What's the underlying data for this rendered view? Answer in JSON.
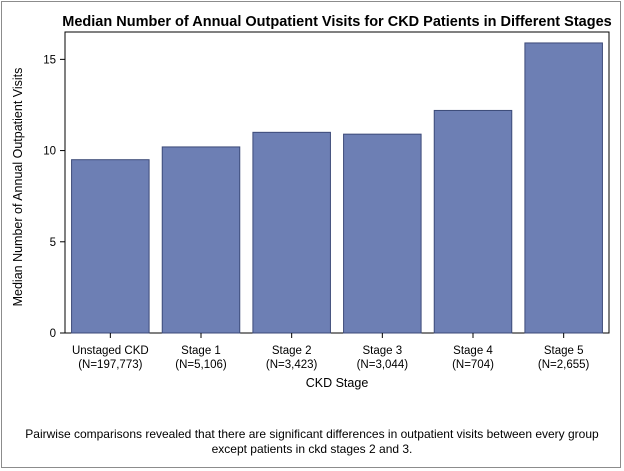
{
  "chart_data": {
    "type": "bar",
    "title": "Median Number of Annual Outpatient Visits for CKD Patients in Different Stages",
    "xlabel": "CKD Stage",
    "ylabel": "Median Number of Annual Outpatient Visits",
    "categories": [
      {
        "label": "Unstaged CKD",
        "n": "(N=197,773)"
      },
      {
        "label": "Stage 1",
        "n": "(N=5,106)"
      },
      {
        "label": "Stage 2",
        "n": "(N=3,423)"
      },
      {
        "label": "Stage 3",
        "n": "(N=3,044)"
      },
      {
        "label": "Stage 4",
        "n": "(N=704)"
      },
      {
        "label": "Stage 5",
        "n": "(N=2,655)"
      }
    ],
    "values": [
      9.5,
      10.2,
      11.0,
      10.9,
      12.2,
      15.9
    ],
    "ylim": [
      0,
      16.5
    ],
    "yticks": [
      0,
      5,
      10,
      15
    ],
    "grid": false,
    "bar_color": "#6d7fb4",
    "bar_edge_color": "#3c4a78"
  },
  "caption": "Pairwise comparisons revealed that there are significant differences in outpatient visits between every group except patients in ckd stages 2 and 3."
}
